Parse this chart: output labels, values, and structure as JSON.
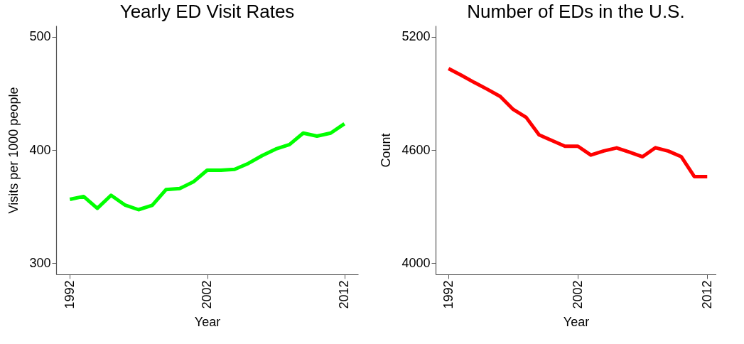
{
  "chart_data": [
    {
      "type": "line",
      "title": "Yearly ED Visit Rates",
      "xlabel": "Year",
      "ylabel": "Visits per 1000 people",
      "x": [
        1992,
        1993,
        1994,
        1995,
        1996,
        1997,
        1998,
        1999,
        2000,
        2001,
        2002,
        2003,
        2004,
        2005,
        2006,
        2007,
        2008,
        2009,
        2010,
        2011,
        2012
      ],
      "series": [
        {
          "color": "#00ff00",
          "values": [
            356.3,
            358.9,
            348.4,
            359.9,
            351.4,
            347.2,
            351,
            364.9,
            365.9,
            371.8,
            382.1,
            382.1,
            382.9,
            388.1,
            395,
            400.8,
            404.8,
            414.9,
            412.3,
            414.9,
            423.2
          ]
        }
      ],
      "xlim": [
        1991,
        2013
      ],
      "xticks": [
        1992,
        2002,
        2012
      ],
      "ylim": [
        290,
        510
      ],
      "yticks": [
        300,
        400,
        500
      ],
      "grid": false
    },
    {
      "type": "line",
      "title": "Number of EDs in the U.S.",
      "xlabel": "Year",
      "ylabel": "Count",
      "x": [
        1992,
        1993,
        1994,
        1995,
        1996,
        1997,
        1998,
        1999,
        2000,
        2001,
        2002,
        2003,
        2004,
        2005,
        2006,
        2007,
        2008,
        2009,
        2010,
        2011,
        2012
      ],
      "series": [
        {
          "color": "#ff0000",
          "values": [
            5032,
            4996,
            4958,
            4922,
            4884,
            4815,
            4773,
            4680,
            4650,
            4620,
            4620,
            4573,
            4595,
            4611,
            4588,
            4564,
            4612,
            4594,
            4564,
            4459,
            4459
          ]
        }
      ],
      "xlim": [
        1991,
        2012.7
      ],
      "xticks": [
        1992,
        2002,
        2012
      ],
      "ylim": [
        3940,
        5260
      ],
      "yticks": [
        4000,
        4600,
        5200
      ],
      "grid": false
    }
  ]
}
